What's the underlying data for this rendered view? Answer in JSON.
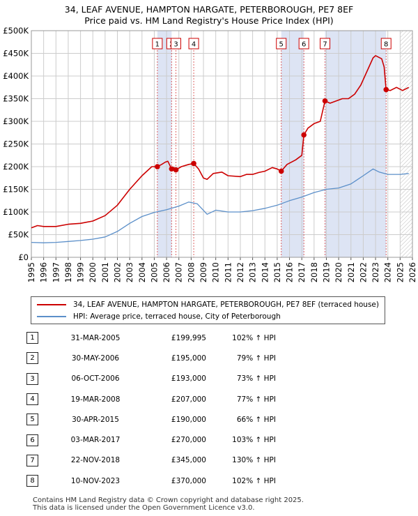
{
  "title_line1": "34, LEAF AVENUE, HAMPTON HARGATE, PETERBOROUGH, PE7 8EF",
  "title_line2": "Price paid vs. HM Land Registry's House Price Index (HPI)",
  "colors": {
    "property": "#cc0000",
    "hpi": "#5b8fc9",
    "band": "#dde4f4",
    "grid": "#cccccc"
  },
  "chart_data": {
    "type": "line",
    "xlim": [
      1995,
      2026
    ],
    "ylim": [
      0,
      500000
    ],
    "y_ticks": [
      {
        "value": 0,
        "label": "£0"
      },
      {
        "value": 50000,
        "label": "£50K"
      },
      {
        "value": 100000,
        "label": "£100K"
      },
      {
        "value": 150000,
        "label": "£150K"
      },
      {
        "value": 200000,
        "label": "£200K"
      },
      {
        "value": 250000,
        "label": "£250K"
      },
      {
        "value": 300000,
        "label": "£300K"
      },
      {
        "value": 350000,
        "label": "£350K"
      },
      {
        "value": 400000,
        "label": "£400K"
      },
      {
        "value": 450000,
        "label": "£450K"
      },
      {
        "value": 500000,
        "label": "£500K"
      }
    ],
    "x_ticks": [
      "1995",
      "1996",
      "1997",
      "1998",
      "1999",
      "2000",
      "2001",
      "2002",
      "2003",
      "2004",
      "2005",
      "2006",
      "2007",
      "2008",
      "2009",
      "2010",
      "2011",
      "2012",
      "2013",
      "2014",
      "2015",
      "2016",
      "2017",
      "2018",
      "2019",
      "2020",
      "2021",
      "2022",
      "2023",
      "2024",
      "2025",
      "2026"
    ],
    "grid": true,
    "series": [
      {
        "name": "34, LEAF AVENUE, HAMPTON HARGATE, PETERBOROUGH, PE7 8EF (terraced house)",
        "color": "#cc0000",
        "points": [
          [
            1995,
            65000
          ],
          [
            1995.5,
            70000
          ],
          [
            1996,
            68000
          ],
          [
            1997,
            68000
          ],
          [
            1998,
            73000
          ],
          [
            1999,
            75000
          ],
          [
            2000,
            80000
          ],
          [
            2001,
            92000
          ],
          [
            2002,
            115000
          ],
          [
            2003,
            150000
          ],
          [
            2004,
            180000
          ],
          [
            2004.8,
            200000
          ],
          [
            2005.25,
            199995
          ],
          [
            2005.6,
            205000
          ],
          [
            2005.9,
            210000
          ],
          [
            2006.1,
            212000
          ],
          [
            2006.41,
            195000
          ],
          [
            2006.6,
            198000
          ],
          [
            2006.76,
            193000
          ],
          [
            2007.2,
            200000
          ],
          [
            2007.8,
            205000
          ],
          [
            2008.21,
            207000
          ],
          [
            2008.6,
            195000
          ],
          [
            2009.0,
            175000
          ],
          [
            2009.3,
            172000
          ],
          [
            2009.8,
            185000
          ],
          [
            2010.5,
            188000
          ],
          [
            2011,
            180000
          ],
          [
            2012,
            178000
          ],
          [
            2012.5,
            183000
          ],
          [
            2013,
            183000
          ],
          [
            2013.5,
            187000
          ],
          [
            2014,
            190000
          ],
          [
            2014.6,
            198000
          ],
          [
            2015.0,
            195000
          ],
          [
            2015.33,
            190000
          ],
          [
            2015.8,
            205000
          ],
          [
            2016.5,
            215000
          ],
          [
            2017.0,
            225000
          ],
          [
            2017.17,
            270000
          ],
          [
            2017.5,
            285000
          ],
          [
            2018,
            295000
          ],
          [
            2018.5,
            300000
          ],
          [
            2018.89,
            345000
          ],
          [
            2019.3,
            340000
          ],
          [
            2019.8,
            345000
          ],
          [
            2020.3,
            350000
          ],
          [
            2020.8,
            350000
          ],
          [
            2021.3,
            360000
          ],
          [
            2021.8,
            380000
          ],
          [
            2022.3,
            410000
          ],
          [
            2022.8,
            440000
          ],
          [
            2023.0,
            445000
          ],
          [
            2023.5,
            438000
          ],
          [
            2023.7,
            420000
          ],
          [
            2023.86,
            370000
          ],
          [
            2024.2,
            368000
          ],
          [
            2024.7,
            375000
          ],
          [
            2025.2,
            368000
          ],
          [
            2025.7,
            375000
          ]
        ]
      },
      {
        "name": "HPI: Average price, terraced house, City of Peterborough",
        "color": "#5b8fc9",
        "points": [
          [
            1995,
            33000
          ],
          [
            1996,
            32000
          ],
          [
            1997,
            33000
          ],
          [
            1998,
            35000
          ],
          [
            1999,
            37000
          ],
          [
            2000,
            40000
          ],
          [
            2001,
            45000
          ],
          [
            2002,
            57000
          ],
          [
            2003,
            75000
          ],
          [
            2004,
            90000
          ],
          [
            2005,
            99000
          ],
          [
            2006,
            105000
          ],
          [
            2007,
            113000
          ],
          [
            2007.8,
            122000
          ],
          [
            2008.5,
            118000
          ],
          [
            2009.3,
            95000
          ],
          [
            2010,
            104000
          ],
          [
            2011,
            100000
          ],
          [
            2012,
            100000
          ],
          [
            2013,
            103000
          ],
          [
            2014,
            108000
          ],
          [
            2015,
            115000
          ],
          [
            2016,
            125000
          ],
          [
            2017,
            133000
          ],
          [
            2018,
            143000
          ],
          [
            2019,
            150000
          ],
          [
            2020,
            153000
          ],
          [
            2021,
            162000
          ],
          [
            2022,
            180000
          ],
          [
            2022.8,
            195000
          ],
          [
            2023.3,
            188000
          ],
          [
            2024,
            183000
          ],
          [
            2025,
            183000
          ],
          [
            2025.7,
            185000
          ]
        ]
      }
    ],
    "sales": [
      {
        "num": "1",
        "x": 2005.25,
        "price": 199995
      },
      {
        "num": "2",
        "x": 2006.41,
        "price": 195000
      },
      {
        "num": "3",
        "x": 2006.76,
        "price": 193000
      },
      {
        "num": "4",
        "x": 2008.21,
        "price": 207000
      },
      {
        "num": "5",
        "x": 2015.33,
        "price": 190000
      },
      {
        "num": "6",
        "x": 2017.17,
        "price": 270000
      },
      {
        "num": "7",
        "x": 2018.89,
        "price": 345000
      },
      {
        "num": "8",
        "x": 2023.86,
        "price": 370000
      }
    ],
    "shaded_ranges": [
      [
        2005.25,
        2006.41
      ],
      [
        2015.33,
        2017.17
      ],
      [
        2018.89,
        2023.86
      ]
    ],
    "forecast_start": 2025.0
  },
  "legend": {
    "property": "34, LEAF AVENUE, HAMPTON HARGATE, PETERBOROUGH, PE7 8EF (terraced house)",
    "hpi": "HPI: Average price, terraced house, City of Peterborough"
  },
  "table": [
    {
      "num": "1",
      "date": "31-MAR-2005",
      "price": "£199,995",
      "hpi": "102% ↑ HPI"
    },
    {
      "num": "2",
      "date": "30-MAY-2006",
      "price": "£195,000",
      "hpi": "79% ↑ HPI"
    },
    {
      "num": "3",
      "date": "06-OCT-2006",
      "price": "£193,000",
      "hpi": "73% ↑ HPI"
    },
    {
      "num": "4",
      "date": "19-MAR-2008",
      "price": "£207,000",
      "hpi": "77% ↑ HPI"
    },
    {
      "num": "5",
      "date": "30-APR-2015",
      "price": "£190,000",
      "hpi": "66% ↑ HPI"
    },
    {
      "num": "6",
      "date": "03-MAR-2017",
      "price": "£270,000",
      "hpi": "103% ↑ HPI"
    },
    {
      "num": "7",
      "date": "22-NOV-2018",
      "price": "£345,000",
      "hpi": "130% ↑ HPI"
    },
    {
      "num": "8",
      "date": "10-NOV-2023",
      "price": "£370,000",
      "hpi": "102% ↑ HPI"
    }
  ],
  "footer_line1": "Contains HM Land Registry data © Crown copyright and database right 2025.",
  "footer_line2": "This data is licensed under the Open Government Licence v3.0."
}
